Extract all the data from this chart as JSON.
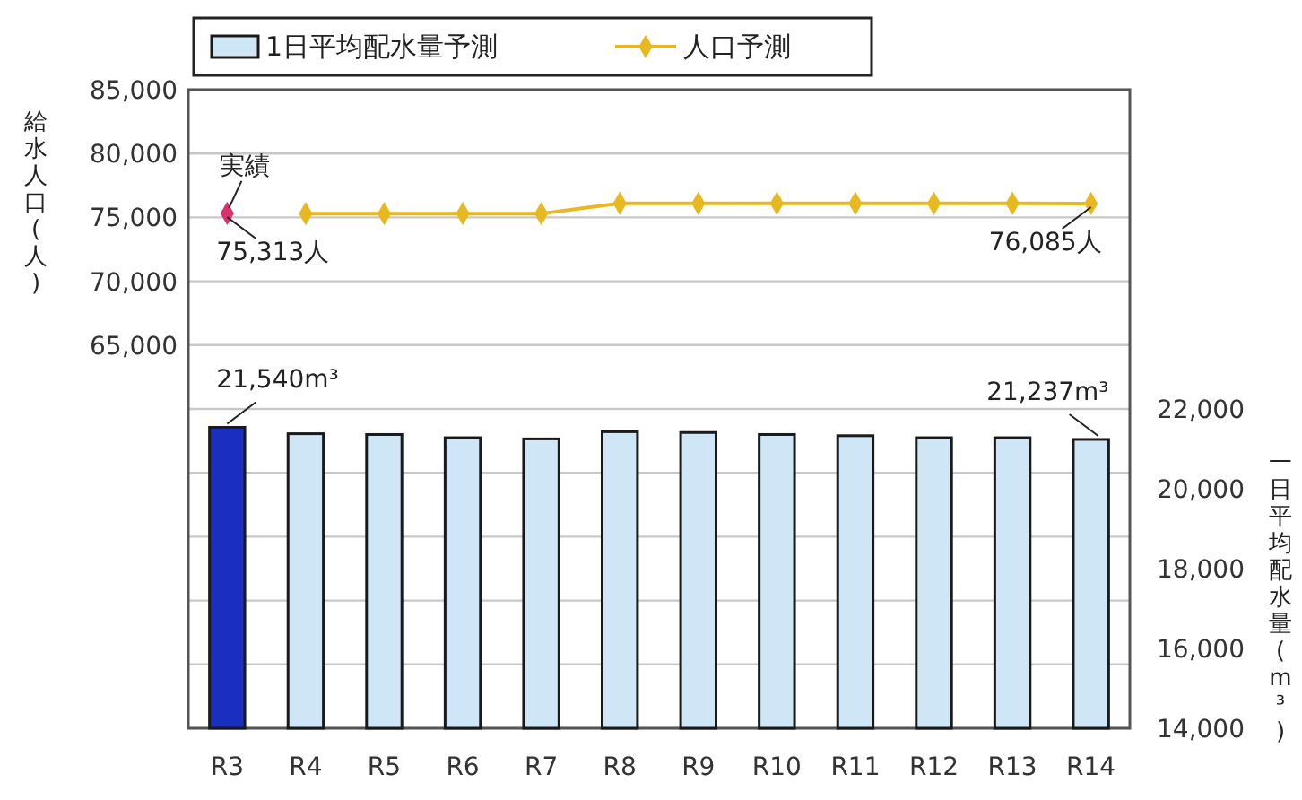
{
  "chart_data": {
    "type": "bar",
    "categories": [
      "R3",
      "R4",
      "R5",
      "R6",
      "R7",
      "R8",
      "R9",
      "R10",
      "R11",
      "R12",
      "R13",
      "R14"
    ],
    "series": [
      {
        "name": "1日平均配水量予測",
        "axis": "y2",
        "color": "#cfe6f7",
        "colors": [
          "#1a2fc0",
          "#cfe6f7",
          "#cfe6f7",
          "#cfe6f7",
          "#cfe6f7",
          "#cfe6f7",
          "#cfe6f7",
          "#cfe6f7",
          "#cfe6f7",
          "#cfe6f7",
          "#cfe6f7",
          "#cfe6f7"
        ],
        "values": [
          21540,
          21380,
          21360,
          21280,
          21250,
          21430,
          21410,
          21360,
          21330,
          21280,
          21280,
          21237
        ],
        "value_labels": [
          "21,540m³",
          null,
          null,
          null,
          null,
          null,
          null,
          null,
          null,
          null,
          null,
          "21,237m³"
        ]
      },
      {
        "name": "人口予測",
        "type": "line",
        "color": "#e8b820",
        "values": [
          null,
          75300,
          75300,
          75300,
          75300,
          76100,
          76100,
          76100,
          76100,
          76100,
          76100,
          76085
        ],
        "value_labels": [
          null,
          null,
          null,
          null,
          null,
          null,
          null,
          null,
          null,
          null,
          null,
          "76,085人"
        ]
      },
      {
        "type": "scatter",
        "color": "#d6336c",
        "values": [
          75313,
          null,
          null,
          null,
          null,
          null,
          null,
          null,
          null,
          null,
          null,
          null
        ],
        "value_labels": [
          "75,313人",
          null,
          null,
          null,
          null,
          null,
          null,
          null,
          null,
          null,
          null,
          null
        ]
      }
    ],
    "ylabel": "給水人口(人)",
    "y2label": "一日平均配水量(m³)",
    "ylim": [
      35000,
      85000
    ],
    "yticks": [
      {
        "value": 35000,
        "label": null
      },
      {
        "value": 40000,
        "label": null
      },
      {
        "value": 45000,
        "label": null
      },
      {
        "value": 50000,
        "label": null
      },
      {
        "value": 55000,
        "label": null
      },
      {
        "value": 60000,
        "label": null
      },
      {
        "value": 65000,
        "label": "65,000"
      },
      {
        "value": 70000,
        "label": "70,000"
      },
      {
        "value": 75000,
        "label": "75,000"
      },
      {
        "value": 80000,
        "label": "80,000"
      },
      {
        "value": 85000,
        "label": "85,000"
      }
    ],
    "y2lim": [
      14000,
      30000
    ],
    "y2ticks": [
      {
        "value": 14000,
        "label": "14,000"
      },
      {
        "value": 16000,
        "label": "16,000"
      },
      {
        "value": 18000,
        "label": "18,000"
      },
      {
        "value": 20000,
        "label": "20,000"
      },
      {
        "value": 22000,
        "label": "22,000"
      }
    ],
    "annotations": [
      {
        "text": "実績",
        "x": "R3",
        "y": 75313
      }
    ],
    "grid": "y",
    "legend": "top",
    "marker": "diamond",
    "line_style": "solid"
  }
}
